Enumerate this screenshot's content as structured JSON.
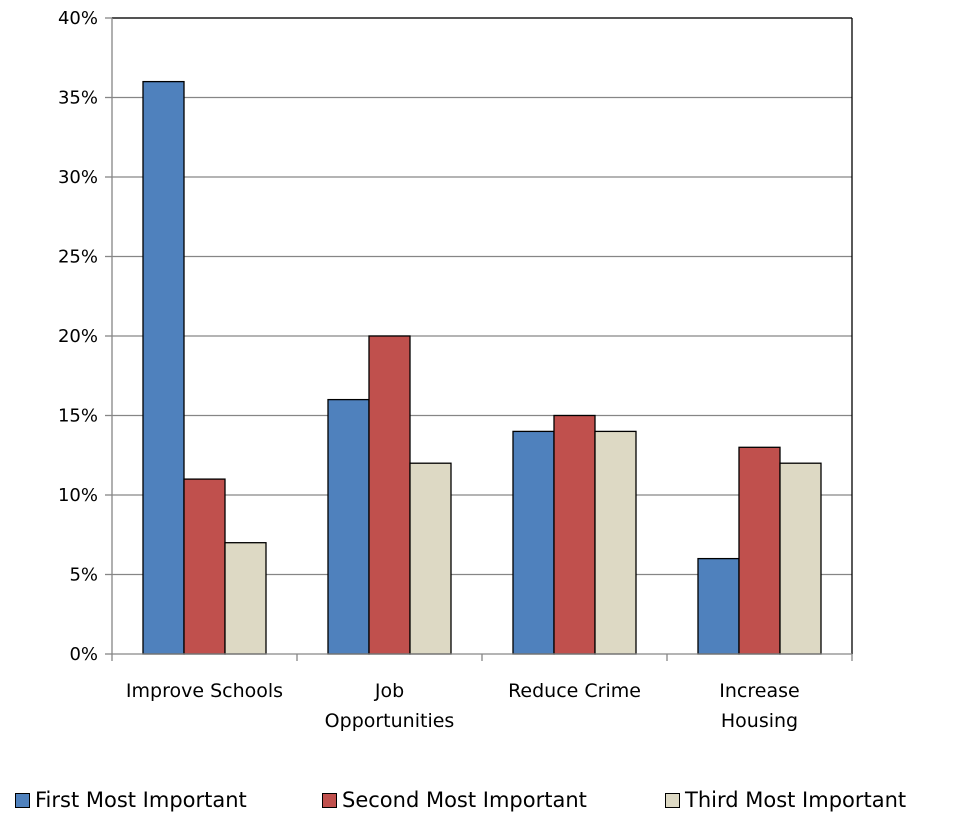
{
  "chart_data": {
    "type": "bar",
    "categories": [
      "Improve Schools",
      "Job Opportunities",
      "Reduce Crime",
      "Increase Housing"
    ],
    "category_lines": [
      [
        "Improve Schools"
      ],
      [
        "Job",
        "Opportunities"
      ],
      [
        "Reduce Crime"
      ],
      [
        "Increase",
        "Housing"
      ]
    ],
    "series": [
      {
        "name": "First Most Important",
        "values": [
          36,
          16,
          14,
          6
        ],
        "color": "#4f81bd"
      },
      {
        "name": "Second Most Important",
        "values": [
          11,
          20,
          15,
          13
        ],
        "color": "#c0504d"
      },
      {
        "name": "Third Most Important",
        "values": [
          7,
          12,
          14,
          12
        ],
        "color": "#ddd9c4"
      }
    ],
    "y_ticks": [
      "0%",
      "5%",
      "10%",
      "15%",
      "20%",
      "25%",
      "30%",
      "35%",
      "40%"
    ],
    "ylim": [
      0,
      40
    ],
    "y_unit": "%",
    "grid": true,
    "legend_position": "bottom",
    "title": "",
    "xlabel": "",
    "ylabel": ""
  }
}
